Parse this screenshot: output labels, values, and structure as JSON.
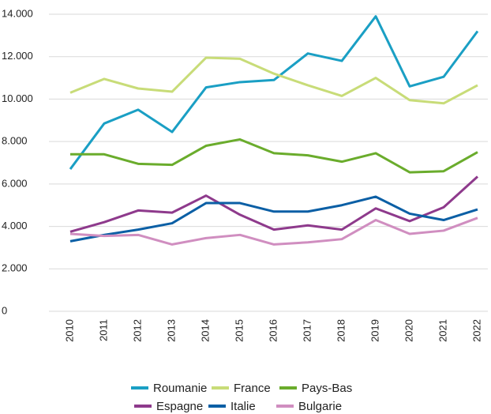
{
  "chart_data": {
    "type": "line",
    "categories": [
      "2010",
      "2011",
      "2012",
      "2013",
      "2014",
      "2015",
      "2016",
      "2017",
      "2018",
      "2019",
      "2020",
      "2021",
      "2022"
    ],
    "series": [
      {
        "name": "Roumanie",
        "color": "#1a9fc4",
        "values": [
          6700,
          8850,
          9500,
          8450,
          10550,
          10800,
          10900,
          12150,
          11800,
          13900,
          10600,
          11050,
          13200
        ]
      },
      {
        "name": "France",
        "color": "#c8dc78",
        "values": [
          10300,
          10950,
          10500,
          10350,
          11950,
          11900,
          11200,
          10650,
          10150,
          11000,
          9950,
          9800,
          10650
        ]
      },
      {
        "name": "Pays-Bas",
        "color": "#6aac2c",
        "values": [
          7400,
          7400,
          6950,
          6900,
          7800,
          8100,
          7450,
          7350,
          7050,
          7450,
          6550,
          6600,
          7500
        ]
      },
      {
        "name": "Espagne",
        "color": "#8e3a8c",
        "values": [
          3750,
          4200,
          4750,
          4650,
          5450,
          4550,
          3850,
          4050,
          3850,
          4850,
          4250,
          4900,
          6350
        ]
      },
      {
        "name": "Italie",
        "color": "#0b5fa5",
        "values": [
          3300,
          3600,
          3850,
          4150,
          5100,
          5100,
          4700,
          4700,
          5000,
          5400,
          4600,
          4300,
          4800
        ]
      },
      {
        "name": "Bulgarie",
        "color": "#d08ec0",
        "values": [
          3650,
          3550,
          3600,
          3150,
          3450,
          3600,
          3150,
          3250,
          3400,
          4300,
          3650,
          3800,
          4400
        ]
      }
    ],
    "ylim": [
      0,
      14000
    ],
    "yticks": [
      {
        "value": 0,
        "label": "0"
      },
      {
        "value": 2000,
        "label": "2.000"
      },
      {
        "value": 4000,
        "label": "4.000"
      },
      {
        "value": 6000,
        "label": "6.000"
      },
      {
        "value": 8000,
        "label": "8.000"
      },
      {
        "value": 10000,
        "label": "10.000"
      },
      {
        "value": 12000,
        "label": "12.000"
      },
      {
        "value": 14000,
        "label": "14.000"
      }
    ],
    "grid": true,
    "legend": "bottom"
  }
}
